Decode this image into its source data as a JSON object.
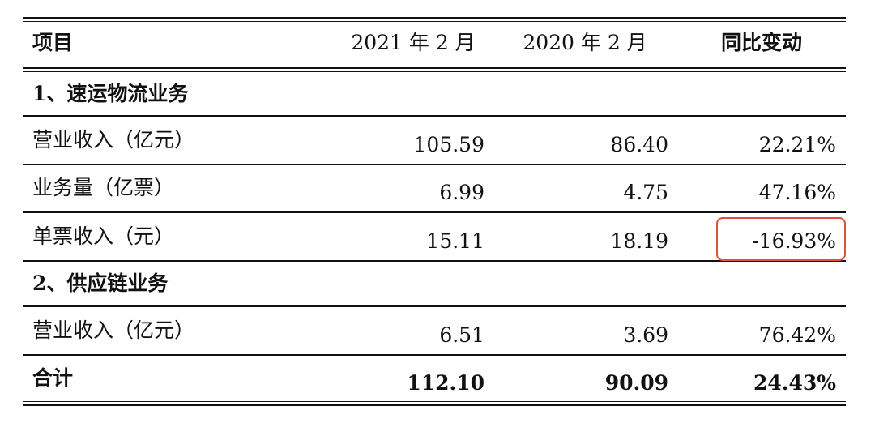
{
  "table": {
    "header": [
      "项目",
      "2021 年 2 月",
      "2020 年 2 月",
      "同比变动"
    ],
    "rows": [
      [
        "1、速运物流业务"
      ],
      [
        "营业收入（亿元）",
        "105.59",
        "86.40",
        "22.21%"
      ],
      [
        "业务量（亿票）",
        "6.99",
        "4.75",
        "47.16%"
      ],
      [
        "单票收入（元）",
        "15.11",
        "18.19",
        "-16.93%"
      ],
      [
        "2、供应链业务"
      ],
      [
        "营业收入（亿元）",
        "6.51",
        "3.69",
        "76.42%"
      ],
      [
        "合计",
        "112.10",
        "90.09",
        "24.43%"
      ]
    ]
  }
}
